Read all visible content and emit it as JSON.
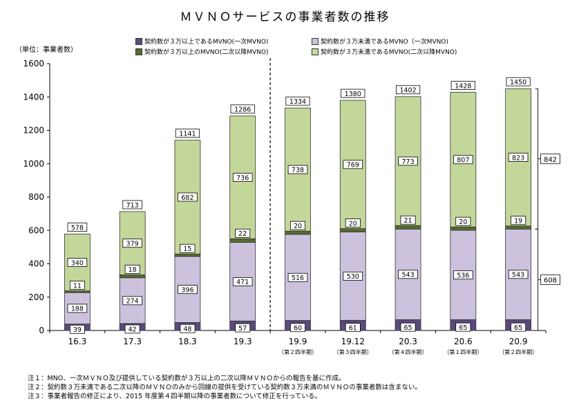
{
  "title": "ＭＶＮＯサービスの事業者数の推移",
  "unit_label": "（単位：事業者数）",
  "legend": [
    {
      "label": "契約数が３万以上であるMVNO(一次MVNO)",
      "color": "#5b4a7c"
    },
    {
      "label": "契約数が３万未満であるMVNO（一次MVNO)",
      "color": "#ccc2dd"
    },
    {
      "label": "契約数が３万以上のMVNO(二次以降MVNO)",
      "color": "#556b2f"
    },
    {
      "label": "契約数が３万未満であるMVNO(二次以降MVNO)",
      "color": "#c4d79b"
    }
  ],
  "chart_data": {
    "type": "bar",
    "stacked": true,
    "categories": [
      "16.3",
      "17.3",
      "18.3",
      "19.3",
      "19.9",
      "19.12",
      "20.3",
      "20.6",
      "20.9"
    ],
    "subcategories": [
      "",
      "",
      "",
      "",
      "（第２四半期）",
      "（第３四半期）",
      "（第４四半期）",
      "（第１四半期）",
      "（第２四半期）"
    ],
    "series": [
      {
        "name": "契約数が３万以上であるMVNO(一次MVNO)",
        "values": [
          39,
          42,
          48,
          57,
          60,
          61,
          65,
          65,
          65
        ],
        "color": "#5b4a7c"
      },
      {
        "name": "契約数が３万未満であるMVNO（一次MVNO)",
        "values": [
          188,
          274,
          396,
          471,
          516,
          530,
          543,
          536,
          543
        ],
        "color": "#ccc2dd"
      },
      {
        "name": "契約数が３万以上のMVNO(二次以降MVNO)",
        "values": [
          11,
          18,
          15,
          22,
          20,
          20,
          21,
          20,
          19
        ],
        "color": "#556b2f"
      },
      {
        "name": "契約数が３万未満であるMVNO(二次以降MVNO)",
        "values": [
          340,
          379,
          682,
          736,
          738,
          769,
          773,
          807,
          823
        ],
        "color": "#c4d79b"
      }
    ],
    "totals": [
      578,
      713,
      1141,
      1286,
      1334,
      1380,
      1402,
      1428,
      1450
    ],
    "ylim": [
      0,
      1600
    ],
    "yticks": [
      0,
      200,
      400,
      600,
      800,
      1000,
      1200,
      1400,
      1600
    ],
    "brackets": [
      {
        "value": "842",
        "spans_series": [
          2,
          3
        ]
      },
      {
        "value": "608",
        "spans_series": [
          0,
          1
        ]
      }
    ],
    "divider_after_category": 3,
    "grid": false,
    "legend_position": "top"
  },
  "notes": [
    "注１：MNO、一次ＭＶＮＯ及び提供している契約数が３万以上の二次以降ＭＶＮＯからの報告を基に作成。",
    "注２：契約数３万未満である二次以降のＭＶＮＯのみから回線の提供を受けている契約数３万未満のＭＶＮＯの事業者数は含まない。",
    "注３：事業者報告の修正により、2015 年度第４四半期以降の事業者数について修正を行っている。"
  ]
}
